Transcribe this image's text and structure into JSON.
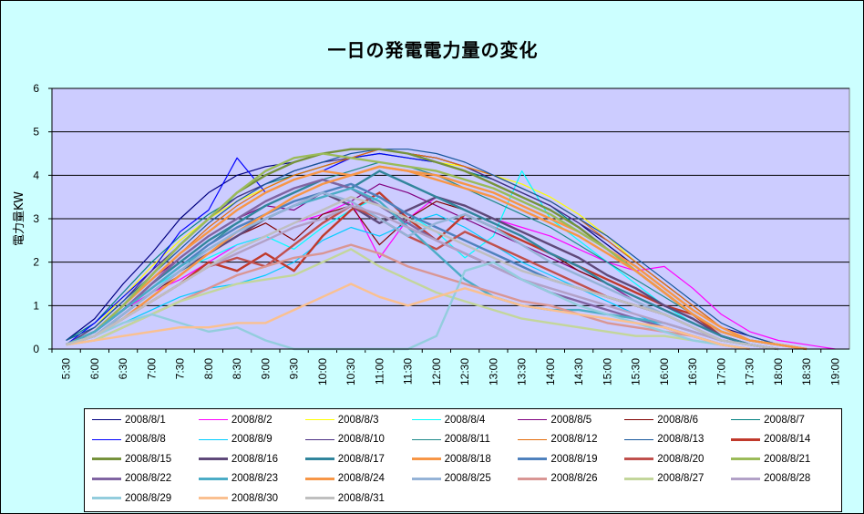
{
  "chart_data": {
    "type": "line",
    "title": "一日の発電電力量の変化",
    "ylabel": "電力量KW",
    "xlabel": "",
    "ylim": [
      0,
      6
    ],
    "yticks": [
      "0",
      "1",
      "2",
      "3",
      "4",
      "5",
      "6"
    ],
    "x_ticks": [
      "5:30",
      "6:00",
      "6:30",
      "7:00",
      "7:30",
      "8:00",
      "8:30",
      "9:00",
      "9:30",
      "10:00",
      "10:30",
      "11:00",
      "11:30",
      "12:00",
      "12:30",
      "13:00",
      "13:30",
      "14:00",
      "14:30",
      "15:00",
      "15:30",
      "16:00",
      "16:30",
      "17:00",
      "17:30",
      "18:00",
      "18:30",
      "19:00"
    ],
    "grid": true,
    "legend_position": "bottom",
    "x": [
      "5:30",
      "6:00",
      "6:30",
      "7:00",
      "7:30",
      "8:00",
      "8:30",
      "9:00",
      "9:30",
      "10:00",
      "10:30",
      "11:00",
      "11:30",
      "12:00",
      "12:30",
      "13:00",
      "13:30",
      "14:00",
      "14:30",
      "15:00",
      "15:30",
      "16:00",
      "16:30",
      "17:00",
      "17:30",
      "18:00",
      "18:30",
      "19:00"
    ],
    "series": [
      {
        "name": "2008/8/1",
        "color": "#000080",
        "values": [
          0.2,
          0.7,
          1.5,
          2.2,
          3.0,
          3.6,
          4.0,
          4.2,
          4.3,
          4.5,
          4.6,
          4.6,
          4.5,
          4.4,
          4.2,
          3.9,
          3.6,
          3.3,
          2.9,
          2.4,
          1.9,
          1.4,
          0.9,
          0.5,
          0.3,
          0.1,
          0.0,
          null
        ]
      },
      {
        "name": "2008/8/2",
        "color": "#ff00ff",
        "values": [
          0.1,
          0.4,
          0.9,
          1.3,
          1.6,
          2.0,
          2.4,
          2.6,
          2.9,
          3.1,
          3.4,
          2.1,
          3.0,
          3.5,
          3.3,
          3.0,
          2.8,
          2.6,
          2.3,
          2.0,
          1.8,
          1.9,
          1.4,
          0.8,
          0.4,
          0.2,
          0.1,
          0.0
        ]
      },
      {
        "name": "2008/8/3",
        "color": "#ffff00",
        "values": [
          0.1,
          0.5,
          1.2,
          1.9,
          2.5,
          3.0,
          3.4,
          3.7,
          4.0,
          4.2,
          4.4,
          4.5,
          4.4,
          4.3,
          4.2,
          4.0,
          3.8,
          3.5,
          3.1,
          2.6,
          2.0,
          1.5,
          1.0,
          0.5,
          0.2,
          0.1,
          0.0,
          null
        ]
      },
      {
        "name": "2008/8/4",
        "color": "#00ffff",
        "values": [
          0.1,
          0.4,
          0.9,
          1.4,
          1.8,
          2.1,
          2.4,
          2.6,
          2.3,
          2.8,
          3.2,
          3.5,
          3.1,
          2.7,
          2.1,
          2.6,
          4.1,
          3.0,
          2.5,
          2.0,
          1.5,
          1.0,
          0.6,
          0.3,
          0.1,
          0.0,
          null,
          null
        ]
      },
      {
        "name": "2008/8/5",
        "color": "#800080",
        "values": [
          0.1,
          0.4,
          1.0,
          1.6,
          2.1,
          2.6,
          3.0,
          3.3,
          3.2,
          3.6,
          3.4,
          3.8,
          3.6,
          3.3,
          3.0,
          2.7,
          2.4,
          2.1,
          1.8,
          1.5,
          1.1,
          0.8,
          0.5,
          0.2,
          0.1,
          0.0,
          null,
          null
        ]
      },
      {
        "name": "2008/8/6",
        "color": "#800000",
        "values": [
          0.1,
          0.3,
          0.8,
          1.3,
          1.7,
          2.2,
          2.6,
          2.9,
          2.5,
          3.1,
          3.3,
          2.4,
          3.0,
          3.4,
          3.2,
          2.9,
          2.6,
          2.2,
          1.8,
          1.5,
          1.2,
          0.9,
          0.6,
          0.3,
          0.1,
          0.0,
          null,
          null
        ]
      },
      {
        "name": "2008/8/7",
        "color": "#008080",
        "values": [
          0.2,
          0.6,
          1.3,
          2.0,
          2.6,
          3.1,
          3.5,
          3.8,
          4.0,
          4.2,
          4.4,
          4.5,
          4.4,
          4.3,
          4.1,
          3.9,
          3.6,
          3.3,
          2.8,
          2.3,
          1.8,
          1.3,
          0.8,
          0.4,
          0.2,
          0.1,
          0.0,
          null
        ]
      },
      {
        "name": "2008/8/8",
        "color": "#0000ff",
        "values": [
          0.1,
          0.6,
          1.2,
          1.8,
          2.7,
          3.2,
          4.4,
          3.6,
          3.9,
          4.1,
          4.4,
          4.5,
          4.4,
          4.3,
          4.1,
          3.8,
          3.5,
          3.2,
          2.8,
          2.3,
          1.8,
          1.3,
          0.8,
          0.4,
          0.2,
          0.1,
          0.0,
          null
        ]
      },
      {
        "name": "2008/8/9",
        "color": "#00ccff",
        "values": [
          0.1,
          0.3,
          0.6,
          0.9,
          1.2,
          1.4,
          1.5,
          1.7,
          2.0,
          2.5,
          2.8,
          2.6,
          2.9,
          3.1,
          2.8,
          2.4,
          2.0,
          1.7,
          1.4,
          1.1,
          0.8,
          0.5,
          0.3,
          0.1,
          0.0,
          null,
          null,
          null
        ]
      },
      {
        "name": "2008/8/10",
        "color": "#4b2e83",
        "values": [
          0.1,
          0.5,
          1.1,
          1.8,
          2.4,
          3.0,
          3.5,
          3.8,
          4.1,
          4.3,
          4.4,
          4.6,
          4.5,
          4.4,
          4.2,
          3.9,
          3.6,
          3.3,
          2.9,
          2.5,
          2.0,
          1.5,
          1.0,
          0.5,
          0.2,
          0.1,
          0.0,
          null
        ]
      },
      {
        "name": "2008/8/11",
        "color": "#1f8a8a",
        "values": [
          0.1,
          0.4,
          0.9,
          1.4,
          1.9,
          2.4,
          2.9,
          3.3,
          3.6,
          3.9,
          4.1,
          4.3,
          4.2,
          4.0,
          3.7,
          3.4,
          3.1,
          2.8,
          2.4,
          2.0,
          1.6,
          1.2,
          0.8,
          0.4,
          0.2,
          0.1,
          0.0,
          null
        ]
      },
      {
        "name": "2008/8/12",
        "color": "#e36c0a",
        "values": [
          0.1,
          0.4,
          1.0,
          1.6,
          2.2,
          2.8,
          3.3,
          3.7,
          4.0,
          4.2,
          4.4,
          4.6,
          4.5,
          4.4,
          4.2,
          4.0,
          3.7,
          3.4,
          3.0,
          2.5,
          2.0,
          1.5,
          1.0,
          0.5,
          0.2,
          0.1,
          0.0,
          null
        ]
      },
      {
        "name": "2008/8/13",
        "color": "#17569b",
        "values": [
          0.2,
          0.5,
          1.1,
          1.7,
          2.3,
          2.9,
          3.4,
          3.8,
          4.1,
          4.3,
          4.5,
          4.6,
          4.6,
          4.5,
          4.3,
          4.0,
          3.7,
          3.4,
          3.0,
          2.6,
          2.1,
          1.6,
          1.1,
          0.6,
          0.3,
          0.1,
          0.0,
          null
        ]
      },
      {
        "name": "2008/8/14",
        "color": "#c0392b",
        "values": [
          0.1,
          0.3,
          0.7,
          1.1,
          1.5,
          2.0,
          1.8,
          2.2,
          1.8,
          2.6,
          3.2,
          3.6,
          3.0,
          2.5,
          3.1,
          2.8,
          2.5,
          2.2,
          1.9,
          1.6,
          1.3,
          1.0,
          0.8,
          0.3,
          0.1,
          0.0,
          null,
          null
        ]
      },
      {
        "name": "2008/8/15",
        "color": "#76923c",
        "values": [
          0.1,
          0.4,
          1.0,
          1.7,
          2.4,
          3.0,
          3.6,
          4.0,
          4.3,
          4.5,
          4.6,
          4.6,
          4.5,
          4.3,
          4.1,
          3.8,
          3.5,
          3.2,
          2.8,
          2.3,
          1.8,
          1.3,
          0.8,
          0.4,
          0.2,
          0.1,
          0.0,
          null
        ]
      },
      {
        "name": "2008/8/16",
        "color": "#5f497a",
        "values": [
          0.1,
          0.3,
          0.8,
          1.3,
          1.8,
          2.2,
          2.6,
          3.0,
          3.3,
          3.6,
          3.3,
          2.9,
          3.2,
          3.5,
          3.3,
          3.0,
          2.7,
          2.4,
          2.1,
          1.7,
          1.4,
          1.0,
          0.7,
          0.3,
          0.1,
          0.0,
          null,
          null
        ]
      },
      {
        "name": "2008/8/17",
        "color": "#31859c",
        "values": [
          0.1,
          0.4,
          0.9,
          1.5,
          2.0,
          2.5,
          2.9,
          3.3,
          3.6,
          3.9,
          3.7,
          4.1,
          3.8,
          3.5,
          3.2,
          2.9,
          2.6,
          2.2,
          1.9,
          1.5,
          1.2,
          0.9,
          0.6,
          0.3,
          0.1,
          0.0,
          null,
          null
        ]
      },
      {
        "name": "2008/8/18",
        "color": "#f79646",
        "values": [
          0.1,
          0.4,
          1.0,
          1.6,
          2.2,
          2.7,
          3.2,
          3.6,
          3.9,
          4.1,
          4.0,
          4.2,
          4.1,
          4.0,
          3.8,
          3.6,
          3.3,
          3.0,
          2.7,
          2.3,
          1.9,
          1.4,
          0.9,
          0.5,
          0.2,
          0.1,
          0.0,
          null
        ]
      },
      {
        "name": "2008/8/19",
        "color": "#4f81bd",
        "values": [
          0.1,
          0.4,
          0.9,
          1.4,
          1.9,
          2.4,
          2.8,
          3.1,
          3.4,
          3.6,
          3.8,
          3.5,
          3.1,
          2.8,
          2.5,
          2.2,
          1.9,
          1.6,
          1.4,
          1.2,
          1.0,
          0.8,
          0.5,
          0.2,
          0.1,
          0.0,
          null,
          null
        ]
      },
      {
        "name": "2008/8/20",
        "color": "#c0504d",
        "values": [
          0.1,
          0.3,
          0.7,
          1.1,
          1.5,
          1.9,
          2.1,
          1.9,
          2.4,
          2.9,
          3.3,
          3.0,
          2.6,
          2.3,
          2.7,
          2.4,
          2.1,
          1.8,
          1.5,
          1.2,
          1.0,
          0.8,
          0.5,
          0.2,
          0.1,
          0.0,
          null,
          null
        ]
      },
      {
        "name": "2008/8/21",
        "color": "#9bbb59",
        "values": [
          0.1,
          0.4,
          1.0,
          1.7,
          2.4,
          3.0,
          3.6,
          4.1,
          4.4,
          4.5,
          4.4,
          4.3,
          4.2,
          4.1,
          3.9,
          3.7,
          3.4,
          3.1,
          2.7,
          2.3,
          1.8,
          1.3,
          0.8,
          0.4,
          0.2,
          0.1,
          0.0,
          null
        ]
      },
      {
        "name": "2008/8/22",
        "color": "#8064a2",
        "values": [
          0.1,
          0.4,
          0.9,
          1.5,
          2.1,
          2.6,
          3.0,
          3.4,
          3.7,
          3.9,
          3.7,
          3.3,
          2.9,
          2.5,
          2.2,
          1.9,
          1.6,
          1.3,
          1.1,
          0.9,
          0.7,
          0.5,
          0.3,
          0.1,
          0.0,
          null,
          null,
          null
        ]
      },
      {
        "name": "2008/8/23",
        "color": "#4bacc6",
        "values": [
          0.1,
          0.4,
          0.9,
          1.4,
          1.9,
          2.3,
          2.7,
          3.0,
          3.3,
          3.5,
          3.7,
          3.4,
          2.8,
          2.2,
          1.6,
          1.2,
          1.0,
          0.9,
          0.9,
          0.8,
          0.7,
          0.6,
          0.4,
          0.2,
          0.1,
          0.0,
          null,
          null
        ]
      },
      {
        "name": "2008/8/24",
        "color": "#f79646",
        "values": [
          0.1,
          0.3,
          0.7,
          1.2,
          1.7,
          2.2,
          2.7,
          3.1,
          3.5,
          3.8,
          4.0,
          4.2,
          4.1,
          3.9,
          3.7,
          3.5,
          3.2,
          2.9,
          2.6,
          2.2,
          1.8,
          1.3,
          0.8,
          0.4,
          0.2,
          0.1,
          0.0,
          null
        ]
      },
      {
        "name": "2008/8/25",
        "color": "#95b3d7",
        "values": [
          0.1,
          0.3,
          0.8,
          1.3,
          1.8,
          2.3,
          2.7,
          3.0,
          3.3,
          3.6,
          3.4,
          3.0,
          2.6,
          2.9,
          3.1,
          2.8,
          2.4,
          2.0,
          1.7,
          1.4,
          1.1,
          0.8,
          0.5,
          0.2,
          0.1,
          0.0,
          null,
          null
        ]
      },
      {
        "name": "2008/8/26",
        "color": "#d99694",
        "values": [
          0.1,
          0.2,
          0.5,
          0.8,
          1.1,
          1.4,
          1.7,
          1.9,
          2.1,
          2.2,
          2.4,
          2.2,
          1.9,
          1.7,
          1.5,
          1.3,
          1.1,
          1.0,
          0.8,
          0.6,
          0.5,
          0.4,
          0.3,
          0.1,
          0.0,
          null,
          null,
          null
        ]
      },
      {
        "name": "2008/8/27",
        "color": "#c3d69b",
        "values": [
          0.1,
          0.2,
          0.5,
          0.8,
          1.1,
          1.3,
          1.5,
          1.6,
          1.7,
          2.0,
          2.3,
          1.9,
          1.6,
          1.3,
          1.1,
          0.9,
          0.7,
          0.6,
          0.5,
          0.4,
          0.3,
          0.3,
          0.2,
          0.1,
          0.0,
          null,
          null,
          null
        ]
      },
      {
        "name": "2008/8/28",
        "color": "#b2a1c7",
        "values": [
          0.1,
          0.3,
          0.7,
          1.1,
          1.5,
          1.9,
          2.2,
          2.5,
          2.8,
          3.0,
          3.3,
          3.1,
          2.8,
          2.5,
          2.2,
          1.9,
          1.6,
          1.4,
          1.2,
          1.0,
          0.8,
          0.6,
          0.4,
          0.2,
          0.1,
          0.0,
          null,
          null
        ]
      },
      {
        "name": "2008/8/29",
        "color": "#93cddd",
        "values": [
          0.1,
          0.3,
          0.6,
          0.8,
          0.6,
          0.4,
          0.5,
          0.2,
          0.0,
          0.0,
          0.0,
          0.0,
          0.0,
          0.3,
          1.8,
          2.0,
          1.6,
          1.3,
          1.0,
          0.8,
          0.6,
          0.4,
          0.2,
          0.1,
          0.0,
          null,
          null,
          null
        ]
      },
      {
        "name": "2008/8/30",
        "color": "#fac090",
        "values": [
          0.1,
          0.2,
          0.3,
          0.4,
          0.5,
          0.5,
          0.6,
          0.6,
          0.9,
          1.2,
          1.5,
          1.2,
          1.0,
          1.2,
          1.4,
          1.2,
          1.0,
          0.9,
          0.8,
          0.7,
          0.6,
          0.5,
          0.3,
          0.1,
          0.0,
          null,
          null,
          null
        ]
      },
      {
        "name": "2008/8/31",
        "color": "#bfbfbf",
        "values": [
          0.1,
          0.3,
          0.7,
          1.1,
          1.5,
          1.9,
          2.3,
          2.6,
          2.9,
          3.2,
          3.5,
          3.3,
          3.0,
          2.7,
          2.4,
          2.1,
          1.8,
          1.6,
          1.4,
          1.2,
          1.0,
          0.8,
          0.5,
          0.2,
          0.1,
          0.0,
          null,
          null
        ]
      }
    ]
  }
}
